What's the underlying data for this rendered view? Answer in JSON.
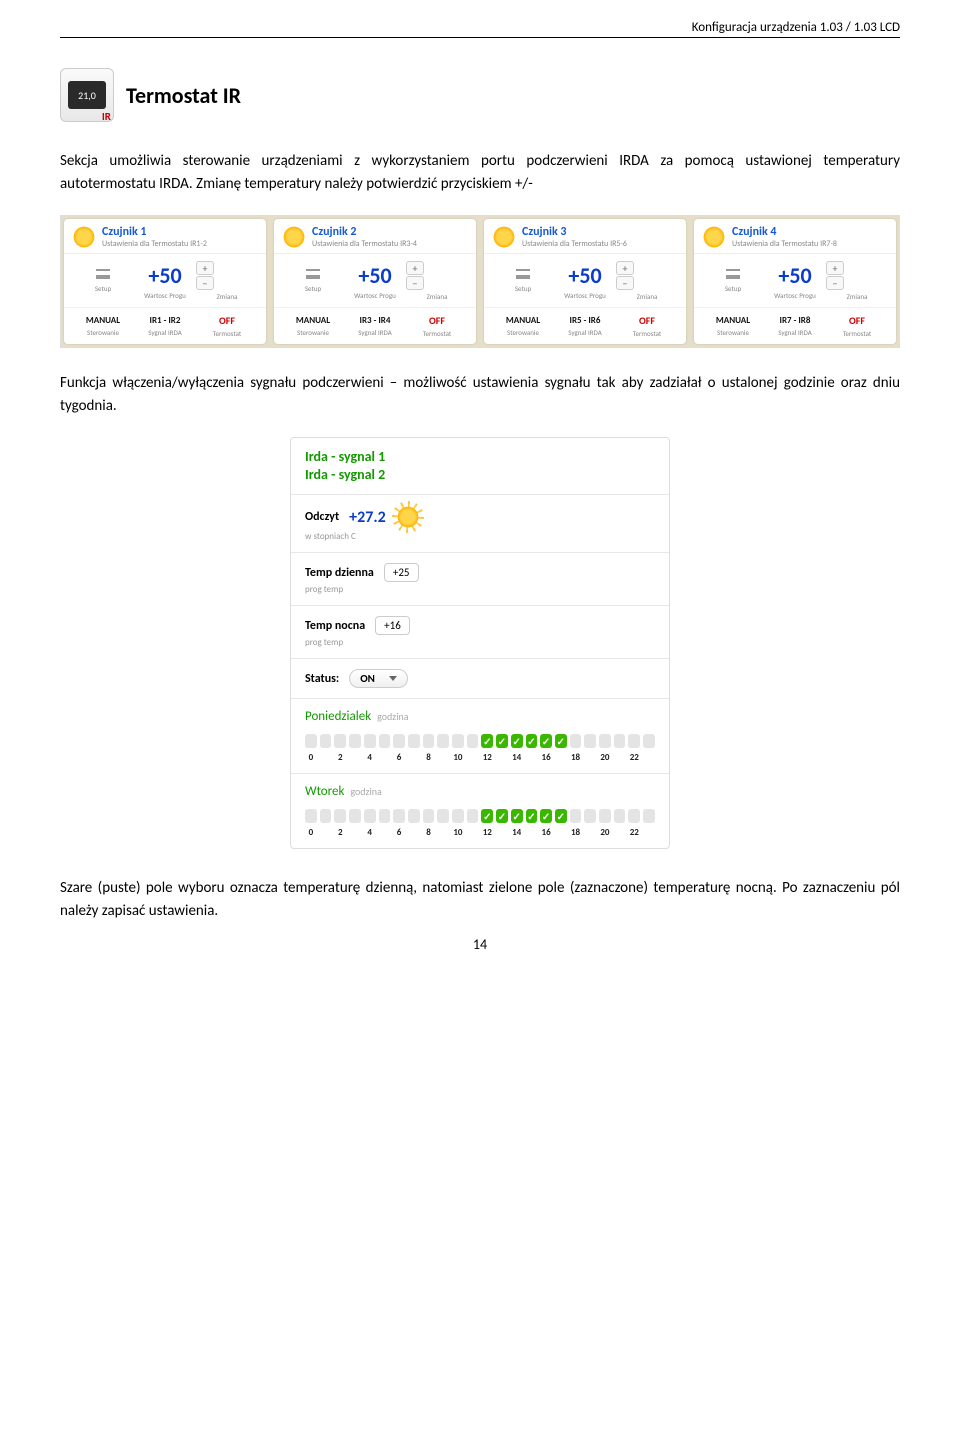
{
  "header": "Konfiguracja urządzenia 1.03 / 1.03 LCD",
  "icon": {
    "screen": "21,0",
    "ir": "IR"
  },
  "title": "Termostat IR",
  "para1": "Sekcja umożliwia sterowanie urządzeniami z wykorzystaniem portu podczerwieni IRDA za pomocą ustawionej temperatury autotermostatu IRDA. Zmianę temperatury należy potwierdzić przyciskiem +/-",
  "sensors": [
    {
      "title": "Czujnik 1",
      "sub": "Ustawienia dla Termostatu IR1-2",
      "value": "+50",
      "mode": "MANUAL",
      "sig": "IR1 - IR2",
      "state": "OFF"
    },
    {
      "title": "Czujnik 2",
      "sub": "Ustawienia dla Termostatu IR3-4",
      "value": "+50",
      "mode": "MANUAL",
      "sig": "IR3 - IR4",
      "state": "OFF"
    },
    {
      "title": "Czujnik 3",
      "sub": "Ustawienia dla Termostatu IR5-6",
      "value": "+50",
      "mode": "MANUAL",
      "sig": "IR5 - IR6",
      "state": "OFF"
    },
    {
      "title": "Czujnik 4",
      "sub": "Ustawienia dla Termostatu IR7-8",
      "value": "+50",
      "mode": "MANUAL",
      "sig": "IR7 - IR8",
      "state": "OFF"
    }
  ],
  "labels": {
    "setup": "Setup",
    "wartosc": "Wartosc Progu",
    "zmiana": "Zmiana",
    "sterowanie": "Sterowanie",
    "sygnal": "Sygnal IRDA",
    "termostat": "Termostat",
    "plus": "+",
    "minus": "−"
  },
  "para2": "Funkcja włączenia/wyłączenia sygnału podczerwieni – możliwość ustawienia sygnału tak aby zadziałał o ustalonej godzinie oraz dniu tygodnia.",
  "panel": {
    "irda1": "Irda - sygnal 1",
    "irda2": "Irda - sygnal 2",
    "odczyt_lbl": "Odczyt",
    "odczyt_val": "+27.2",
    "odczyt_sub": "w stopniach C",
    "td_lbl": "Temp dzienna",
    "td_val": "+25",
    "td_sub": "prog temp",
    "tn_lbl": "Temp nocna",
    "tn_val": "+16",
    "tn_sub": "prog temp",
    "status_lbl": "Status:",
    "status_val": "ON",
    "days": [
      {
        "name": "Poniedzialek",
        "godz": "godzina",
        "on": [
          12,
          13,
          14,
          15,
          16,
          17
        ]
      },
      {
        "name": "Wtorek",
        "godz": "godzina",
        "on": [
          12,
          13,
          14,
          15,
          16,
          17
        ]
      }
    ],
    "hour_labels": [
      "0",
      "",
      "2",
      "",
      "4",
      "",
      "6",
      "",
      "8",
      "",
      "10",
      "",
      "12",
      "",
      "14",
      "",
      "16",
      "",
      "18",
      "",
      "20",
      "",
      "22",
      ""
    ]
  },
  "footer": "Szare (puste) pole wyboru oznacza temperaturę dzienną, natomiast zielone pole (zaznaczone) temperaturę nocną. Po zaznaczeniu pól należy zapisać ustawienia.",
  "page": "14"
}
